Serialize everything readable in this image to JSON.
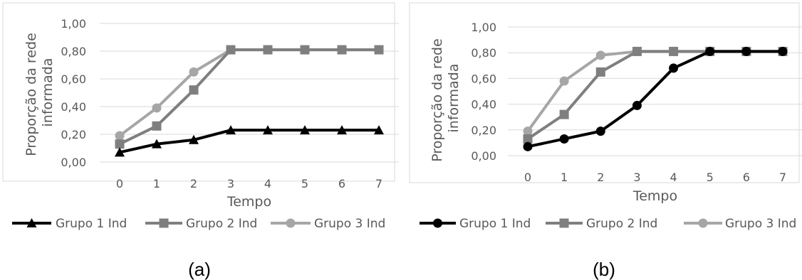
{
  "chart_data": [
    {
      "type": "line",
      "panel_label": "(a)",
      "xlabel": "Tempo",
      "ylabel": [
        "Proporção da rede",
        "informada"
      ],
      "x": [
        0,
        1,
        2,
        3,
        4,
        5,
        6,
        7
      ],
      "x_tick_labels": [
        "0",
        "1",
        "2",
        "3",
        "4",
        "5",
        "6",
        "7"
      ],
      "ylim": [
        0,
        1
      ],
      "y_tick_labels": [
        "0,00",
        "0,20",
        "0,40",
        "0,60",
        "0,80",
        "1,00"
      ],
      "grid": true,
      "legend_position": "bottom",
      "series": [
        {
          "name": "Grupo 1 Ind",
          "marker": "triangle",
          "color": "#000000",
          "values": [
            0.07,
            0.13,
            0.16,
            0.23,
            0.23,
            0.23,
            0.23,
            0.23
          ]
        },
        {
          "name": "Grupo 2 Ind",
          "marker": "square",
          "color": "#7f7f7f",
          "values": [
            0.13,
            0.26,
            0.52,
            0.81,
            0.81,
            0.81,
            0.81,
            0.81
          ]
        },
        {
          "name": "Grupo 3 Ind",
          "marker": "circle",
          "color": "#a6a6a6",
          "values": [
            0.19,
            0.39,
            0.65,
            0.81,
            0.81,
            0.81,
            0.81,
            0.81
          ]
        }
      ]
    },
    {
      "type": "line",
      "panel_label": "(b)",
      "xlabel": "Tempo",
      "ylabel": [
        "Proporção da rede",
        "informada"
      ],
      "x": [
        0,
        1,
        2,
        3,
        4,
        5,
        6,
        7
      ],
      "x_tick_labels": [
        "0",
        "1",
        "2",
        "3",
        "4",
        "5",
        "6",
        "7"
      ],
      "ylim": [
        0,
        1
      ],
      "y_tick_labels": [
        "0,00",
        "0,20",
        "0,40",
        "0,60",
        "0,80",
        "1,00"
      ],
      "grid": true,
      "legend_position": "bottom",
      "series": [
        {
          "name": "Grupo 1 Ind",
          "marker": "circle",
          "color": "#000000",
          "values": [
            0.07,
            0.13,
            0.19,
            0.39,
            0.68,
            0.81,
            0.81,
            0.81
          ]
        },
        {
          "name": "Grupo 2 Ind",
          "marker": "square",
          "color": "#7f7f7f",
          "values": [
            0.13,
            0.32,
            0.65,
            0.81,
            0.81,
            0.81,
            0.81,
            0.81
          ]
        },
        {
          "name": "Grupo 3 Ind",
          "marker": "circle",
          "color": "#a6a6a6",
          "values": [
            0.19,
            0.58,
            0.78,
            0.81,
            0.81,
            0.81,
            0.81,
            0.81
          ]
        }
      ]
    }
  ]
}
